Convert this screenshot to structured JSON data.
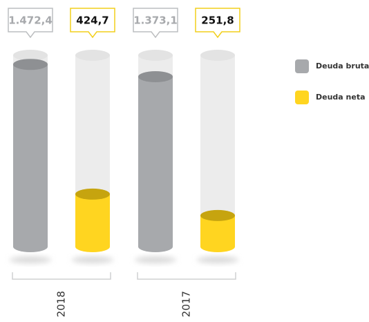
{
  "chart_data": {
    "type": "bar",
    "categories": [
      "2018",
      "2017"
    ],
    "series": [
      {
        "name": "Deuda bruta",
        "color": "#a7a9ac",
        "values": [
          1472.4,
          1373.1
        ],
        "value_labels": [
          "1.472,4",
          "1.373,1"
        ]
      },
      {
        "name": "Deuda neta",
        "color": "#ffd520",
        "values": [
          424.7,
          251.8
        ],
        "value_labels": [
          "424,7",
          "251,8"
        ]
      }
    ]
  }
}
